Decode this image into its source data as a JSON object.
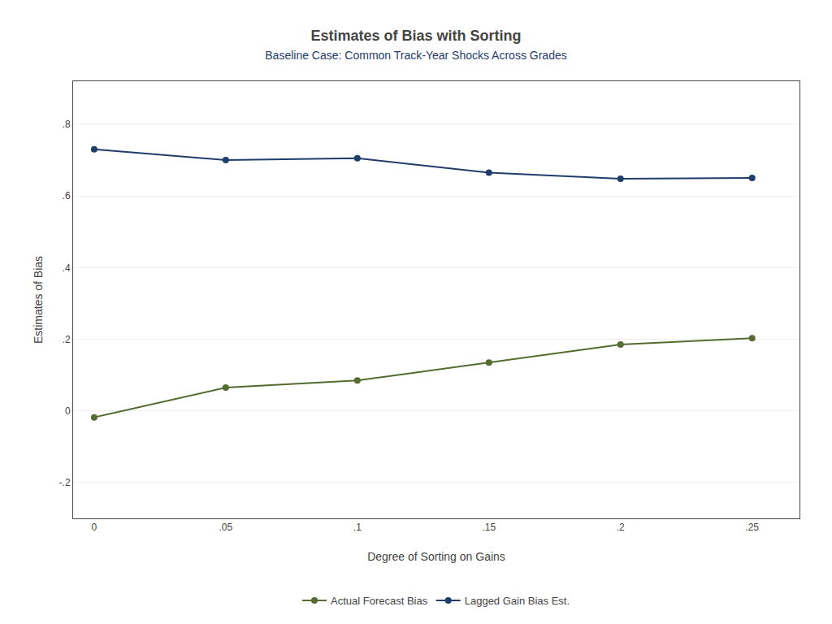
{
  "chart_data": {
    "type": "line",
    "title": "Estimates of Bias with Sorting",
    "subtitle": "Baseline Case: Common Track-Year Shocks Across Grades",
    "xlabel": "Degree of Sorting on Gains",
    "ylabel": "Estimates of Bias",
    "x": [
      0,
      0.05,
      0.1,
      0.15,
      0.2,
      0.25
    ],
    "series": [
      {
        "name": "Actual Forecast Bias",
        "color": "#556B2F",
        "values": [
          -0.018,
          0.065,
          0.085,
          0.135,
          0.185,
          0.203
        ]
      },
      {
        "name": "Lagged Gain Bias Est.",
        "color": "#1F3D6B",
        "values": [
          0.73,
          0.7,
          0.705,
          0.665,
          0.648,
          0.65
        ]
      }
    ],
    "marker": "circle",
    "xlim": [
      -0.008,
      0.268
    ],
    "xticks": [
      0,
      {
        "value": 0.05,
        "label": ".05"
      },
      {
        "value": 0.1,
        "label": ".1"
      },
      {
        "value": 0.15,
        "label": ".15"
      },
      {
        "value": 0.2,
        "label": ".2"
      },
      {
        "value": 0.25,
        "label": ".25"
      }
    ],
    "ylim": [
      -0.3,
      0.92
    ],
    "yticks": [
      {
        "value": -0.2,
        "label": "-.2"
      },
      0,
      {
        "value": 0.2,
        "label": ".2"
      },
      {
        "value": 0.4,
        "label": ".4"
      },
      {
        "value": 0.6,
        "label": ".6"
      },
      {
        "value": 0.8,
        "label": ".8"
      }
    ],
    "grid": "y",
    "legend": "bottom"
  }
}
